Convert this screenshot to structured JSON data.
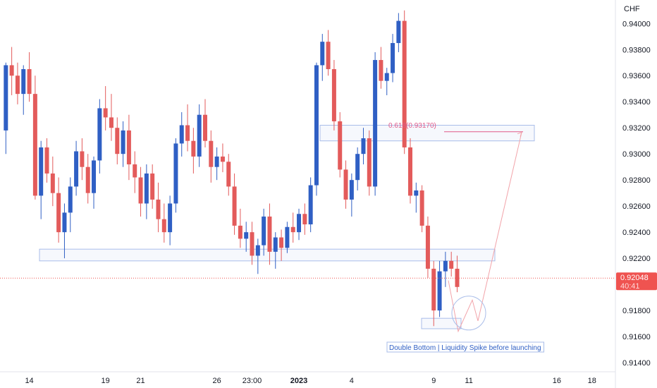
{
  "currency_label": "CHF",
  "price_badge": {
    "price": "0.92048",
    "countdown": "40:41"
  },
  "annotations": {
    "fib_label": "0.618(0.93170)",
    "note": "Double Bottom | Liquidity Spike before launching"
  },
  "colors": {
    "up": "#2f5fc4",
    "down": "#e35b5b",
    "zone": "#a9bde9",
    "projection": "#f2a3a9",
    "fib": "#e05a8a",
    "badge": "#ef5350",
    "axis_text": "#131722"
  },
  "chart_data": {
    "type": "candlestick",
    "x_ticks": [
      {
        "label": "14",
        "bar": 4
      },
      {
        "label": "19",
        "bar": 17
      },
      {
        "label": "21",
        "bar": 23
      },
      {
        "label": "26",
        "bar": 36
      },
      {
        "label": "23:00",
        "bar": 42
      },
      {
        "label": "2023",
        "bar": 50
      },
      {
        "label": "4",
        "bar": 59
      },
      {
        "label": "9",
        "bar": 73
      },
      {
        "label": "11",
        "bar": 79
      },
      {
        "label": "16",
        "bar": 94
      },
      {
        "label": "18",
        "bar": 100
      }
    ],
    "y_ticks": [
      "0.94000",
      "0.93800",
      "0.93600",
      "0.93400",
      "0.93200",
      "0.93000",
      "0.92800",
      "0.92600",
      "0.92400",
      "0.92200",
      "0.91800",
      "0.91600",
      "0.91400"
    ],
    "y_range": [
      0.9133,
      0.9418
    ],
    "bar_range": [
      -1,
      104
    ],
    "last_price": 0.92048,
    "ohlc": [
      [
        0.9318,
        0.937,
        0.93,
        0.9368
      ],
      [
        0.9368,
        0.9382,
        0.9345,
        0.936
      ],
      [
        0.936,
        0.937,
        0.9338,
        0.9346
      ],
      [
        0.9346,
        0.9368,
        0.933,
        0.9365
      ],
      [
        0.9365,
        0.9378,
        0.934,
        0.9346
      ],
      [
        0.9346,
        0.936,
        0.9265,
        0.9268
      ],
      [
        0.9268,
        0.931,
        0.925,
        0.9305
      ],
      [
        0.9305,
        0.9312,
        0.9278,
        0.9285
      ],
      [
        0.9285,
        0.9298,
        0.926,
        0.927
      ],
      [
        0.927,
        0.9282,
        0.9232,
        0.924
      ],
      [
        0.924,
        0.9262,
        0.922,
        0.9255
      ],
      [
        0.9255,
        0.9282,
        0.924,
        0.9275
      ],
      [
        0.9275,
        0.931,
        0.9268,
        0.9302
      ],
      [
        0.9302,
        0.9312,
        0.928,
        0.929
      ],
      [
        0.929,
        0.93,
        0.9262,
        0.927
      ],
      [
        0.927,
        0.9298,
        0.9258,
        0.9295
      ],
      [
        0.9295,
        0.9342,
        0.9285,
        0.9335
      ],
      [
        0.9335,
        0.9352,
        0.9318,
        0.9328
      ],
      [
        0.9328,
        0.9346,
        0.931,
        0.932
      ],
      [
        0.932,
        0.9328,
        0.9292,
        0.93
      ],
      [
        0.93,
        0.9325,
        0.929,
        0.9318
      ],
      [
        0.9318,
        0.933,
        0.928,
        0.9292
      ],
      [
        0.9292,
        0.9302,
        0.927,
        0.9282
      ],
      [
        0.9282,
        0.929,
        0.9252,
        0.9262
      ],
      [
        0.9262,
        0.9292,
        0.925,
        0.9285
      ],
      [
        0.9285,
        0.9292,
        0.9258,
        0.9265
      ],
      [
        0.9265,
        0.9278,
        0.924,
        0.925
      ],
      [
        0.925,
        0.9262,
        0.9232,
        0.924
      ],
      [
        0.924,
        0.9268,
        0.923,
        0.9262
      ],
      [
        0.9262,
        0.9312,
        0.9255,
        0.9308
      ],
      [
        0.9308,
        0.9332,
        0.9298,
        0.9322
      ],
      [
        0.9322,
        0.9338,
        0.9302,
        0.931
      ],
      [
        0.931,
        0.932,
        0.9285,
        0.9298
      ],
      [
        0.9298,
        0.9338,
        0.929,
        0.933
      ],
      [
        0.933,
        0.9342,
        0.9305,
        0.931
      ],
      [
        0.931,
        0.9318,
        0.9278,
        0.929
      ],
      [
        0.929,
        0.9305,
        0.928,
        0.9298
      ],
      [
        0.9298,
        0.9308,
        0.9286,
        0.9294
      ],
      [
        0.9294,
        0.93,
        0.9268,
        0.9275
      ],
      [
        0.9275,
        0.9285,
        0.9238,
        0.9245
      ],
      [
        0.9245,
        0.9258,
        0.9228,
        0.9235
      ],
      [
        0.9235,
        0.9248,
        0.9225,
        0.924
      ],
      [
        0.924,
        0.9248,
        0.9215,
        0.9222
      ],
      [
        0.9222,
        0.9235,
        0.9208,
        0.923
      ],
      [
        0.923,
        0.9258,
        0.9222,
        0.9252
      ],
      [
        0.9252,
        0.9262,
        0.9215,
        0.9225
      ],
      [
        0.9225,
        0.924,
        0.9212,
        0.9236
      ],
      [
        0.9236,
        0.9242,
        0.9218,
        0.9228
      ],
      [
        0.9228,
        0.9248,
        0.9224,
        0.9244
      ],
      [
        0.9244,
        0.9255,
        0.9232,
        0.924
      ],
      [
        0.924,
        0.9258,
        0.9234,
        0.9254
      ],
      [
        0.9254,
        0.9262,
        0.9238,
        0.9246
      ],
      [
        0.9246,
        0.9282,
        0.924,
        0.9276
      ],
      [
        0.9276,
        0.937,
        0.9268,
        0.9368
      ],
      [
        0.9368,
        0.9392,
        0.9356,
        0.9386
      ],
      [
        0.9386,
        0.9395,
        0.936,
        0.9365
      ],
      [
        0.9365,
        0.9372,
        0.9318,
        0.9325
      ],
      [
        0.9325,
        0.9332,
        0.9282,
        0.9288
      ],
      [
        0.9288,
        0.9295,
        0.9258,
        0.9265
      ],
      [
        0.9265,
        0.9285,
        0.9252,
        0.928
      ],
      [
        0.928,
        0.9305,
        0.9272,
        0.93
      ],
      [
        0.93,
        0.932,
        0.9292,
        0.9312
      ],
      [
        0.9312,
        0.9318,
        0.9268,
        0.9275
      ],
      [
        0.9275,
        0.9378,
        0.9268,
        0.9372
      ],
      [
        0.9372,
        0.9382,
        0.935,
        0.9356
      ],
      [
        0.9356,
        0.9366,
        0.9345,
        0.9362
      ],
      [
        0.9362,
        0.9392,
        0.9355,
        0.9385
      ],
      [
        0.9385,
        0.9408,
        0.9378,
        0.9402
      ],
      [
        0.9402,
        0.941,
        0.93,
        0.9305
      ],
      [
        0.9305,
        0.9312,
        0.9262,
        0.9268
      ],
      [
        0.9268,
        0.9278,
        0.9255,
        0.9272
      ],
      [
        0.9272,
        0.9276,
        0.924,
        0.9245
      ],
      [
        0.9245,
        0.9252,
        0.9205,
        0.9212
      ],
      [
        0.9212,
        0.9218,
        0.9168,
        0.918
      ],
      [
        0.918,
        0.9218,
        0.9175,
        0.921
      ],
      [
        0.921,
        0.9225,
        0.9198,
        0.9218
      ],
      [
        0.9218,
        0.9225,
        0.9206,
        0.9212
      ],
      [
        0.9212,
        0.9222,
        0.9194,
        0.9198
      ]
    ]
  }
}
